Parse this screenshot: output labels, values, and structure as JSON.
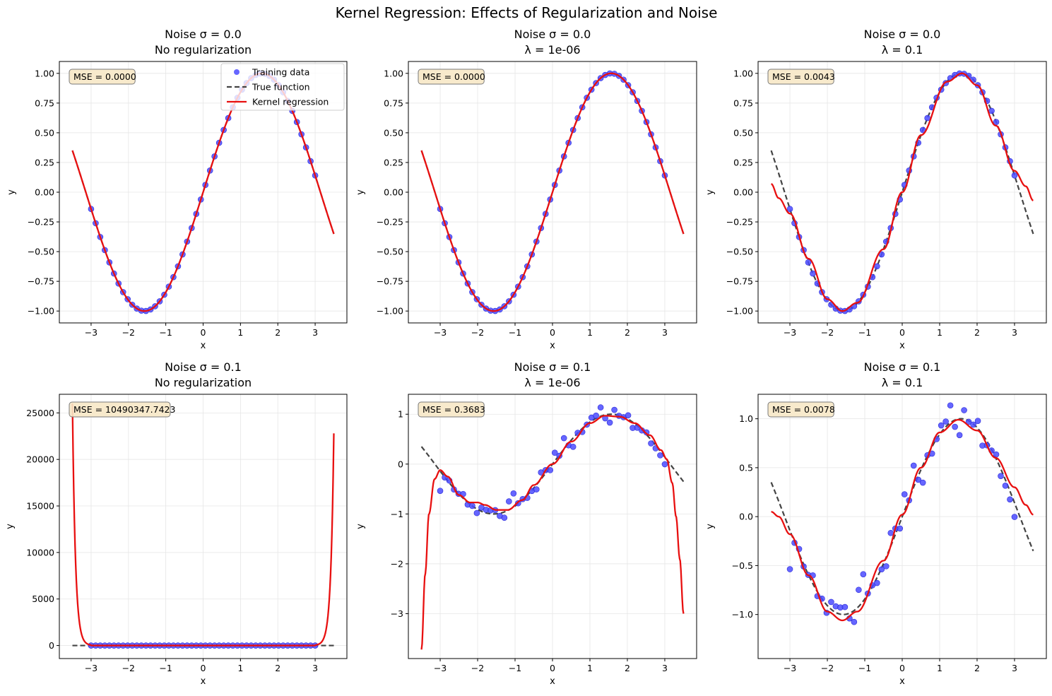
{
  "figure_title": "Kernel Regression: Effects of Regularization and Noise",
  "chart_data": [
    {
      "type": "scatter+line",
      "title": "Noise σ = 0.0",
      "subtitle": "No regularization",
      "xlabel": "x",
      "ylabel": "y",
      "xlim": [
        -3.85,
        3.85
      ],
      "ylim": [
        -1.1,
        1.1
      ],
      "xticks": [
        -3,
        -2,
        -1,
        0,
        1,
        2,
        3
      ],
      "yticks": [
        -1.0,
        -0.75,
        -0.5,
        -0.25,
        0.0,
        0.25,
        0.5,
        0.75,
        1.0
      ],
      "ytick_labels": [
        "−1.00",
        "−0.75",
        "−0.50",
        "−0.25",
        "0.00",
        "0.25",
        "0.50",
        "0.75",
        "1.00"
      ],
      "grid": true,
      "mse": "MSE = 0.0000",
      "legend": {
        "position": "upper right",
        "entries": [
          "Training data",
          "True function",
          "Kernel regression"
        ]
      },
      "series": [
        {
          "name": "Training data",
          "kind": "scatter",
          "color": "#4b4bff",
          "noise": 0.0
        },
        {
          "name": "True function",
          "kind": "line",
          "color": "#444444",
          "dash": true
        },
        {
          "name": "Kernel regression",
          "kind": "line",
          "color": "#e81010",
          "model": "exact"
        }
      ]
    },
    {
      "type": "scatter+line",
      "title": "Noise σ = 0.0",
      "subtitle": "λ = 1e-06",
      "xlabel": "x",
      "ylabel": "y",
      "xlim": [
        -3.85,
        3.85
      ],
      "ylim": [
        -1.1,
        1.1
      ],
      "xticks": [
        -3,
        -2,
        -1,
        0,
        1,
        2,
        3
      ],
      "yticks": [
        -1.0,
        -0.75,
        -0.5,
        -0.25,
        0.0,
        0.25,
        0.5,
        0.75,
        1.0
      ],
      "ytick_labels": [
        "−1.00",
        "−0.75",
        "−0.50",
        "−0.25",
        "0.00",
        "0.25",
        "0.50",
        "0.75",
        "1.00"
      ],
      "grid": true,
      "mse": "MSE = 0.0000",
      "series": [
        {
          "name": "Training data",
          "kind": "scatter",
          "color": "#4b4bff",
          "noise": 0.0
        },
        {
          "name": "True function",
          "kind": "line",
          "color": "#444444",
          "dash": true
        },
        {
          "name": "Kernel regression",
          "kind": "line",
          "color": "#e81010",
          "model": "exact"
        }
      ]
    },
    {
      "type": "scatter+line",
      "title": "Noise σ = 0.0",
      "subtitle": "λ = 0.1",
      "xlabel": "x",
      "ylabel": "y",
      "xlim": [
        -3.85,
        3.85
      ],
      "ylim": [
        -1.1,
        1.1
      ],
      "xticks": [
        -3,
        -2,
        -1,
        0,
        1,
        2,
        3
      ],
      "yticks": [
        -1.0,
        -0.75,
        -0.5,
        -0.25,
        0.0,
        0.25,
        0.5,
        0.75,
        1.0
      ],
      "ytick_labels": [
        "−1.00",
        "−0.75",
        "−0.50",
        "−0.25",
        "0.00",
        "0.25",
        "0.50",
        "0.75",
        "1.00"
      ],
      "grid": true,
      "mse": "MSE = 0.0043",
      "series": [
        {
          "name": "Training data",
          "kind": "scatter",
          "color": "#4b4bff",
          "noise": 0.0
        },
        {
          "name": "True function",
          "kind": "line",
          "color": "#444444",
          "dash": true
        },
        {
          "name": "Kernel regression",
          "kind": "line",
          "color": "#e81010",
          "model": "smooth",
          "knots": [
            [
              -3.5,
              0.07
            ],
            [
              -3.3,
              -0.05
            ],
            [
              -3.0,
              -0.18
            ],
            [
              -2.5,
              -0.56
            ],
            [
              -2.0,
              -0.9
            ],
            [
              -1.6,
              -1.0
            ],
            [
              -1.2,
              -0.93
            ],
            [
              -0.5,
              -0.48
            ],
            [
              0.0,
              0.0
            ],
            [
              0.5,
              0.48
            ],
            [
              1.2,
              0.93
            ],
            [
              1.6,
              1.0
            ],
            [
              2.0,
              0.9
            ],
            [
              2.5,
              0.56
            ],
            [
              3.0,
              0.18
            ],
            [
              3.3,
              0.05
            ],
            [
              3.5,
              -0.07
            ]
          ]
        }
      ]
    },
    {
      "type": "scatter+line",
      "title": "Noise σ = 0.1",
      "subtitle": "No regularization",
      "xlabel": "x",
      "ylabel": "y",
      "xlim": [
        -3.85,
        3.85
      ],
      "ylim": [
        -1400,
        27000
      ],
      "xticks": [
        -3,
        -2,
        -1,
        0,
        1,
        2,
        3
      ],
      "yticks": [
        0,
        5000,
        10000,
        15000,
        20000,
        25000
      ],
      "ytick_labels": [
        "0",
        "5000",
        "10000",
        "15000",
        "20000",
        "25000"
      ],
      "grid": true,
      "mse": "MSE = 10490347.7423",
      "series": [
        {
          "name": "Training data",
          "kind": "scatter",
          "color": "#4b4bff",
          "noise": 0.1
        },
        {
          "name": "True function",
          "kind": "line",
          "color": "#444444",
          "dash": true
        },
        {
          "name": "Kernel regression",
          "kind": "line",
          "color": "#e81010",
          "model": "blowup",
          "left_value": 26000,
          "right_value": 22800
        }
      ]
    },
    {
      "type": "scatter+line",
      "title": "Noise σ = 0.1",
      "subtitle": "λ = 1e-06",
      "xlabel": "x",
      "ylabel": "y",
      "xlim": [
        -3.85,
        3.85
      ],
      "ylim": [
        -3.9,
        1.4
      ],
      "xticks": [
        -3,
        -2,
        -1,
        0,
        1,
        2,
        3
      ],
      "yticks": [
        -3,
        -2,
        -1,
        0,
        1
      ],
      "ytick_labels": [
        "−3",
        "−2",
        "−1",
        "0",
        "1"
      ],
      "grid": true,
      "mse": "MSE = 0.3683",
      "series": [
        {
          "name": "Training data",
          "kind": "scatter",
          "color": "#4b4bff",
          "noise": 0.1
        },
        {
          "name": "True function",
          "kind": "line",
          "color": "#444444",
          "dash": true
        },
        {
          "name": "Kernel regression",
          "kind": "line",
          "color": "#e81010",
          "model": "smooth",
          "knots": [
            [
              -3.5,
              -3.72
            ],
            [
              -3.4,
              -2.2
            ],
            [
              -3.3,
              -1.0
            ],
            [
              -3.15,
              -0.3
            ],
            [
              -3.0,
              -0.12
            ],
            [
              -2.8,
              -0.25
            ],
            [
              -2.5,
              -0.62
            ],
            [
              -2.2,
              -0.77
            ],
            [
              -2.0,
              -0.77
            ],
            [
              -1.8,
              -0.82
            ],
            [
              -1.5,
              -0.92
            ],
            [
              -1.2,
              -0.92
            ],
            [
              -0.8,
              -0.72
            ],
            [
              -0.5,
              -0.42
            ],
            [
              0.0,
              0.0
            ],
            [
              0.5,
              0.45
            ],
            [
              1.0,
              0.82
            ],
            [
              1.4,
              0.97
            ],
            [
              1.8,
              0.95
            ],
            [
              2.2,
              0.82
            ],
            [
              2.6,
              0.58
            ],
            [
              2.9,
              0.28
            ],
            [
              3.05,
              0.1
            ],
            [
              3.2,
              -0.38
            ],
            [
              3.3,
              -1.05
            ],
            [
              3.4,
              -1.9
            ],
            [
              3.5,
              -3.0
            ]
          ]
        }
      ]
    },
    {
      "type": "scatter+line",
      "title": "Noise σ = 0.1",
      "subtitle": "λ = 0.1",
      "xlabel": "x",
      "ylabel": "y",
      "xlim": [
        -3.85,
        3.85
      ],
      "ylim": [
        -1.45,
        1.25
      ],
      "xticks": [
        -3,
        -2,
        -1,
        0,
        1,
        2,
        3
      ],
      "yticks": [
        -1.0,
        -0.5,
        0.0,
        0.5,
        1.0
      ],
      "ytick_labels": [
        "−1.0",
        "−0.5",
        "0.0",
        "0.5",
        "1.0"
      ],
      "grid": true,
      "mse": "MSE = 0.0078",
      "series": [
        {
          "name": "Training data",
          "kind": "scatter",
          "color": "#4b4bff",
          "noise": 0.1
        },
        {
          "name": "True function",
          "kind": "line",
          "color": "#444444",
          "dash": true
        },
        {
          "name": "Kernel regression",
          "kind": "line",
          "color": "#e81010",
          "model": "smooth",
          "knots": [
            [
              -3.5,
              0.05
            ],
            [
              -3.3,
              0.0
            ],
            [
              -3.0,
              -0.18
            ],
            [
              -2.5,
              -0.6
            ],
            [
              -2.0,
              -0.97
            ],
            [
              -1.6,
              -1.06
            ],
            [
              -1.2,
              -0.97
            ],
            [
              -0.5,
              -0.45
            ],
            [
              0.0,
              0.02
            ],
            [
              0.5,
              0.5
            ],
            [
              1.0,
              0.86
            ],
            [
              1.5,
              0.99
            ],
            [
              2.0,
              0.88
            ],
            [
              2.5,
              0.6
            ],
            [
              3.0,
              0.3
            ],
            [
              3.3,
              0.12
            ],
            [
              3.5,
              0.02
            ]
          ]
        }
      ]
    }
  ]
}
